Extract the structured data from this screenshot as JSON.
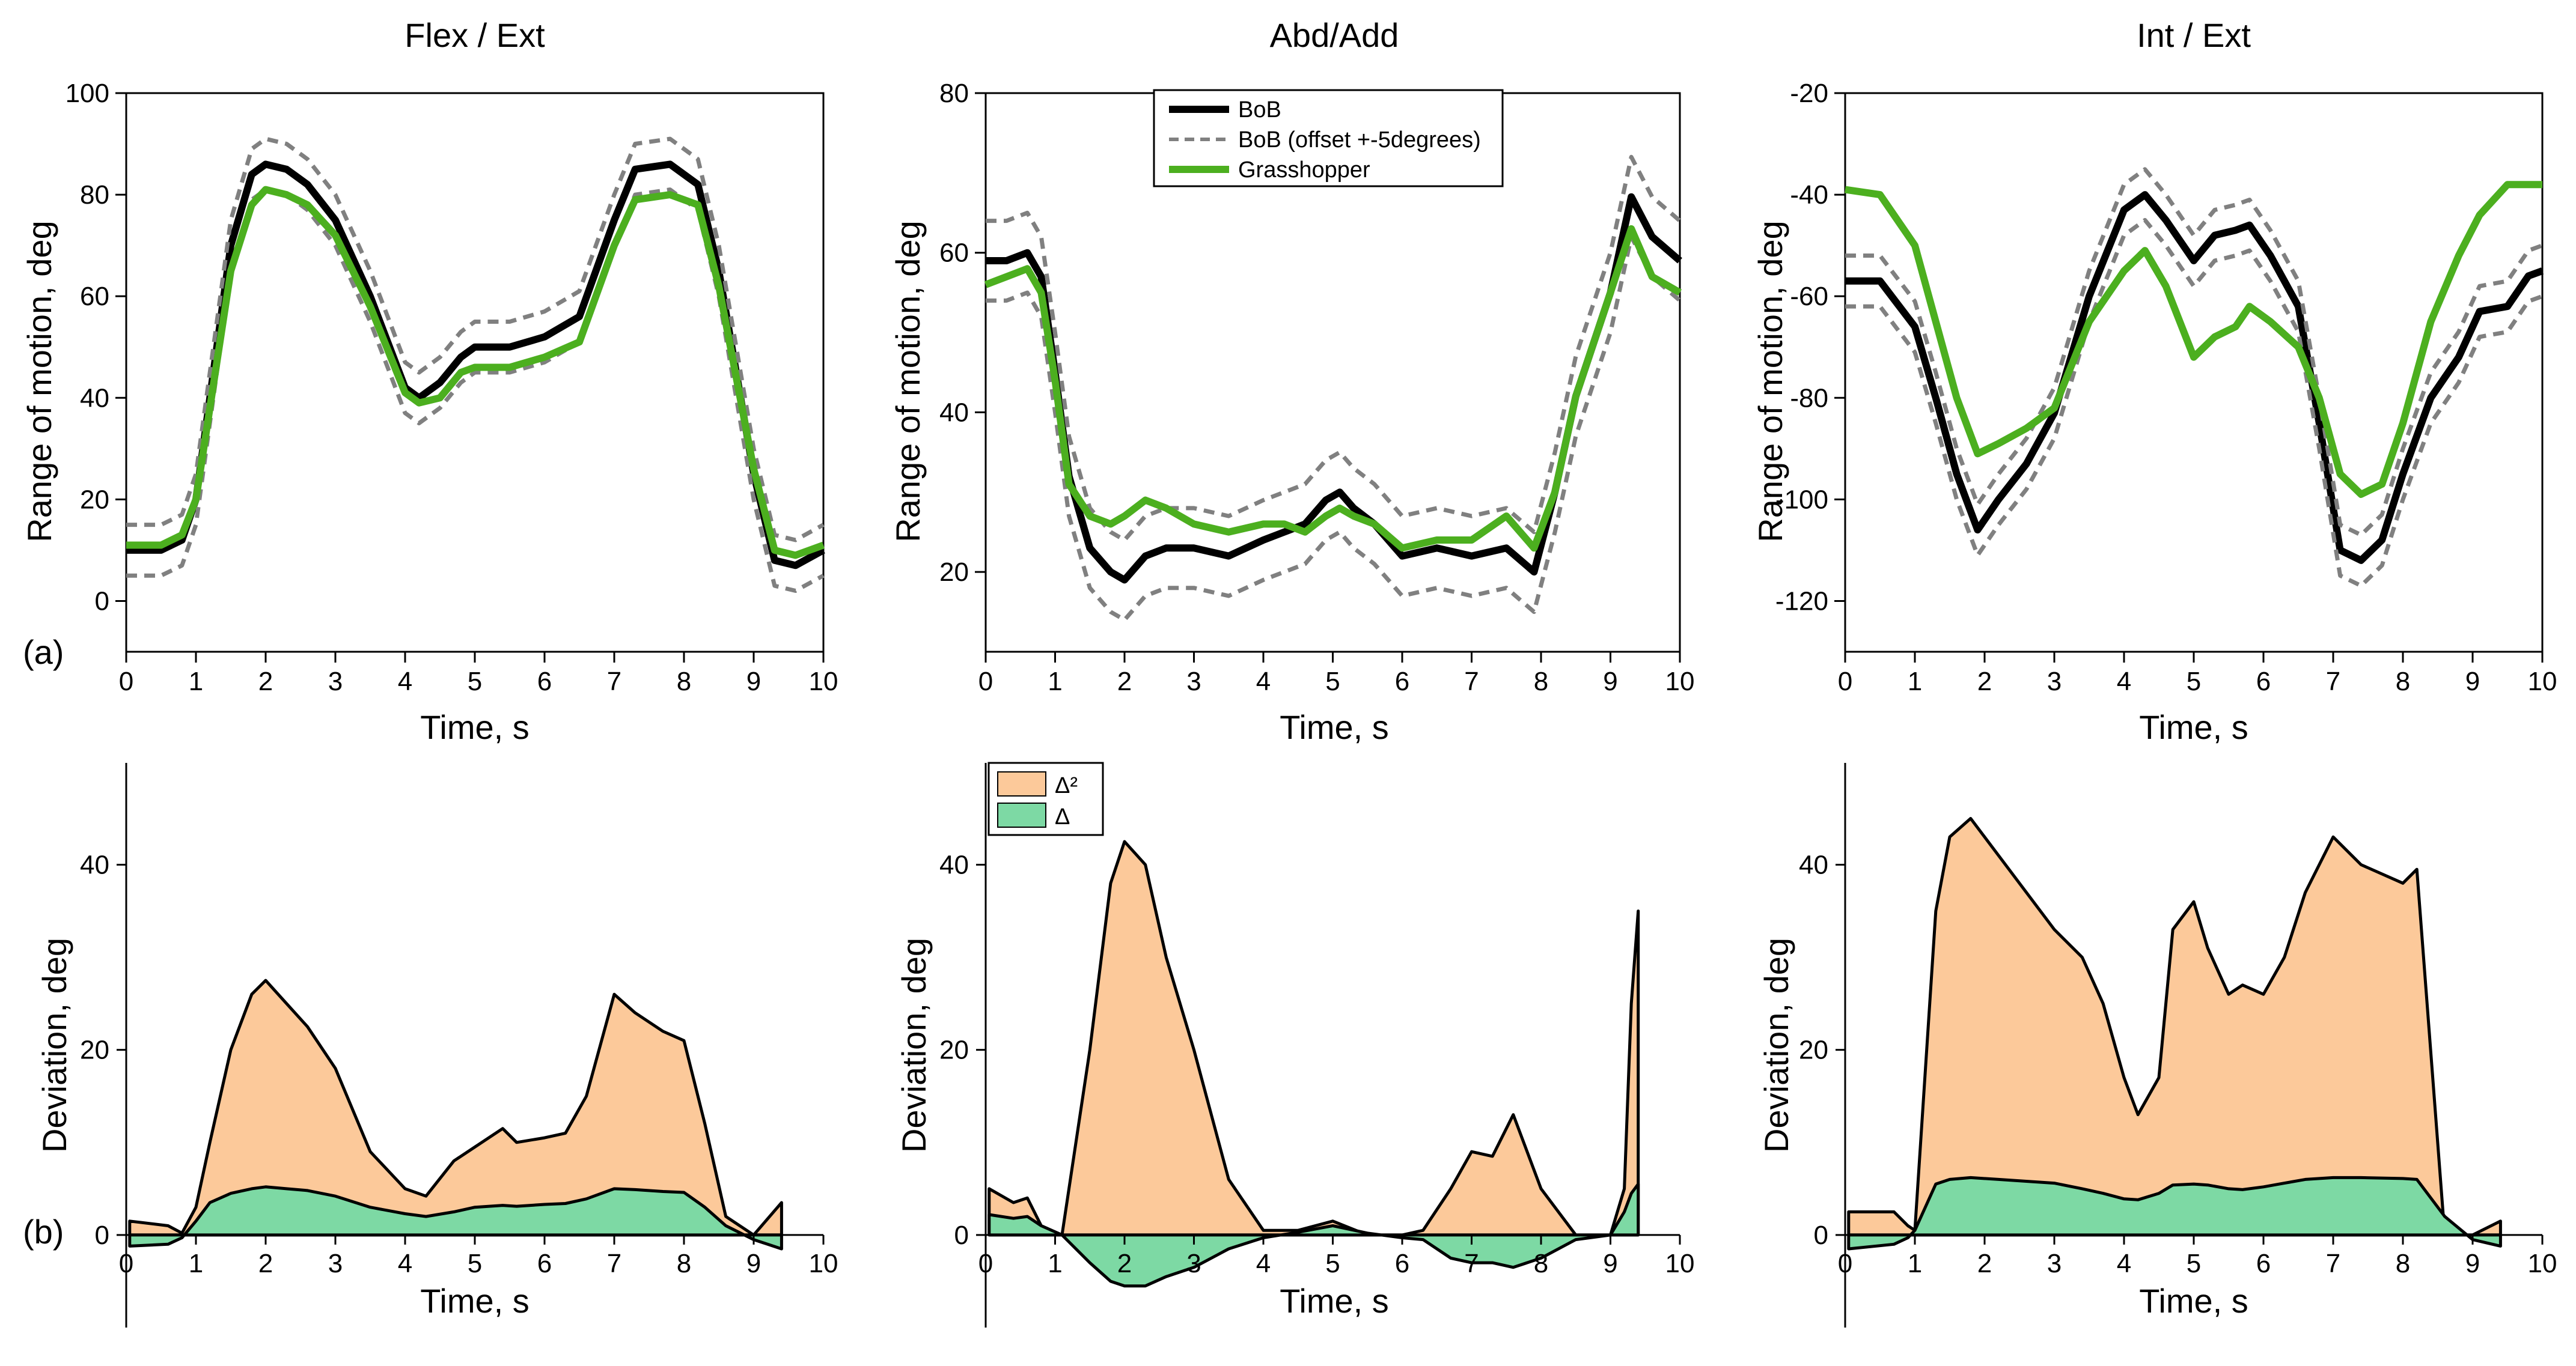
{
  "panel_labels": {
    "top": "(a)",
    "bottom": "(b)"
  },
  "colors": {
    "bob": "#000000",
    "bob_offset": "#808080",
    "grasshopper": "#4caf1f",
    "delta_sq_fill": "#fcc99a",
    "delta_fill": "#7dd9a4"
  },
  "legend_top": [
    "BoB",
    "BoB (offset +-5degrees)",
    "Grasshopper"
  ],
  "legend_bottom": [
    "Δ²",
    "Δ"
  ],
  "chart_data": [
    {
      "type": "line",
      "title": "Flex / Ext",
      "xlabel": "Time, s",
      "ylabel": "Range of motion, deg",
      "xlim": [
        0,
        10
      ],
      "ylim": [
        -10,
        100
      ],
      "xticks": [
        0,
        1,
        2,
        3,
        4,
        5,
        6,
        7,
        8,
        9,
        10
      ],
      "yticks": [
        0,
        20,
        40,
        60,
        80,
        100
      ],
      "x": [
        0,
        0.5,
        0.8,
        1.0,
        1.2,
        1.5,
        1.8,
        2.0,
        2.3,
        2.6,
        3.0,
        3.5,
        4.0,
        4.2,
        4.5,
        4.8,
        5.0,
        5.5,
        6.0,
        6.5,
        7.0,
        7.3,
        7.8,
        8.2,
        8.5,
        9.0,
        9.3,
        9.6,
        10.0
      ],
      "series": [
        {
          "name": "BoB",
          "values": [
            10,
            10,
            12,
            20,
            40,
            70,
            84,
            86,
            85,
            82,
            75,
            60,
            42,
            40,
            43,
            48,
            50,
            50,
            52,
            56,
            75,
            85,
            86,
            82,
            65,
            25,
            8,
            7,
            10
          ]
        },
        {
          "name": "BoB (offset +-5degrees) upper",
          "values": [
            15,
            15,
            17,
            25,
            45,
            75,
            89,
            91,
            90,
            87,
            80,
            65,
            47,
            45,
            48,
            53,
            55,
            55,
            57,
            61,
            80,
            90,
            91,
            87,
            70,
            30,
            13,
            12,
            15
          ]
        },
        {
          "name": "BoB (offset +-5degrees) lower",
          "values": [
            5,
            5,
            7,
            15,
            35,
            65,
            79,
            81,
            80,
            77,
            70,
            55,
            37,
            35,
            38,
            43,
            45,
            45,
            47,
            51,
            70,
            80,
            81,
            77,
            60,
            20,
            3,
            2,
            5
          ]
        },
        {
          "name": "Grasshopper",
          "values": [
            11,
            11,
            13,
            20,
            38,
            65,
            78,
            81,
            80,
            78,
            72,
            58,
            41,
            39,
            40,
            45,
            46,
            46,
            48,
            51,
            70,
            79,
            80,
            78,
            62,
            26,
            10,
            9,
            11
          ]
        }
      ]
    },
    {
      "type": "line",
      "title": "Abd/Add",
      "xlabel": "Time, s",
      "ylabel": "Range of motion, deg",
      "xlim": [
        0,
        10
      ],
      "ylim": [
        10,
        80
      ],
      "xticks": [
        0,
        1,
        2,
        3,
        4,
        5,
        6,
        7,
        8,
        9,
        10
      ],
      "yticks": [
        20,
        40,
        60,
        80
      ],
      "x": [
        0,
        0.3,
        0.6,
        0.8,
        1.0,
        1.2,
        1.5,
        1.8,
        2.0,
        2.3,
        2.6,
        3.0,
        3.5,
        4.0,
        4.3,
        4.6,
        4.9,
        5.1,
        5.3,
        5.6,
        6.0,
        6.5,
        7.0,
        7.5,
        7.9,
        8.2,
        8.5,
        9.0,
        9.3,
        9.6,
        10.0
      ],
      "series": [
        {
          "name": "BoB",
          "values": [
            59,
            59,
            60,
            57,
            45,
            32,
            23,
            20,
            19,
            22,
            23,
            23,
            22,
            24,
            25,
            26,
            29,
            30,
            28,
            26,
            22,
            23,
            22,
            23,
            20,
            30,
            42,
            55,
            67,
            62,
            59
          ]
        },
        {
          "name": "BoB (offset +-5degrees) upper",
          "values": [
            64,
            64,
            65,
            62,
            50,
            37,
            28,
            25,
            24,
            27,
            28,
            28,
            27,
            29,
            30,
            31,
            34,
            35,
            33,
            31,
            27,
            28,
            27,
            28,
            25,
            35,
            47,
            60,
            72,
            67,
            64
          ]
        },
        {
          "name": "BoB (offset +-5degrees) lower",
          "values": [
            54,
            54,
            55,
            52,
            40,
            27,
            18,
            15,
            14,
            17,
            18,
            18,
            17,
            19,
            20,
            21,
            24,
            25,
            23,
            21,
            17,
            18,
            17,
            18,
            15,
            25,
            37,
            50,
            62,
            57,
            54
          ]
        },
        {
          "name": "Grasshopper",
          "values": [
            56,
            57,
            58,
            55,
            44,
            31,
            27,
            26,
            27,
            29,
            28,
            26,
            25,
            26,
            26,
            25,
            27,
            28,
            27,
            26,
            23,
            24,
            24,
            27,
            23,
            30,
            42,
            55,
            63,
            57,
            55
          ]
        }
      ]
    },
    {
      "type": "line",
      "title": "Int / Ext",
      "xlabel": "Time, s",
      "ylabel": "Range of motion, deg",
      "xlim": [
        0,
        10
      ],
      "ylim": [
        -130,
        -20
      ],
      "xticks": [
        0,
        1,
        2,
        3,
        4,
        5,
        6,
        7,
        8,
        9,
        10
      ],
      "yticks": [
        -20,
        -40,
        -60,
        -80,
        -100,
        -120
      ],
      "x": [
        0,
        0.5,
        1.0,
        1.3,
        1.6,
        1.9,
        2.2,
        2.6,
        3.0,
        3.5,
        4.0,
        4.3,
        4.6,
        5.0,
        5.3,
        5.6,
        5.8,
        6.1,
        6.5,
        6.8,
        7.1,
        7.4,
        7.7,
        8.0,
        8.4,
        8.8,
        9.1,
        9.5,
        9.8,
        10.0
      ],
      "series": [
        {
          "name": "BoB",
          "values": [
            -57,
            -57,
            -66,
            -80,
            -95,
            -106,
            -100,
            -93,
            -83,
            -60,
            -43,
            -40,
            -45,
            -53,
            -48,
            -47,
            -46,
            -52,
            -62,
            -85,
            -110,
            -112,
            -108,
            -95,
            -80,
            -72,
            -63,
            -62,
            -56,
            -55
          ]
        },
        {
          "name": "BoB (offset +-5degrees) upper",
          "values": [
            -52,
            -52,
            -61,
            -75,
            -90,
            -101,
            -95,
            -88,
            -78,
            -55,
            -38,
            -35,
            -40,
            -48,
            -43,
            -42,
            -41,
            -47,
            -57,
            -80,
            -105,
            -107,
            -103,
            -90,
            -75,
            -67,
            -58,
            -57,
            -51,
            -50
          ]
        },
        {
          "name": "BoB (offset +-5degrees) lower",
          "values": [
            -62,
            -62,
            -71,
            -85,
            -100,
            -111,
            -105,
            -98,
            -88,
            -65,
            -48,
            -45,
            -50,
            -58,
            -53,
            -52,
            -51,
            -57,
            -67,
            -90,
            -115,
            -117,
            -113,
            -100,
            -85,
            -77,
            -68,
            -67,
            -61,
            -60
          ]
        },
        {
          "name": "Grasshopper",
          "values": [
            -39,
            -40,
            -50,
            -65,
            -80,
            -91,
            -89,
            -86,
            -82,
            -65,
            -55,
            -51,
            -58,
            -72,
            -68,
            -66,
            -62,
            -65,
            -70,
            -80,
            -95,
            -99,
            -97,
            -85,
            -65,
            -52,
            -44,
            -38,
            -38,
            -38
          ]
        }
      ]
    },
    {
      "type": "area",
      "title": "",
      "xlabel": "Time, s",
      "ylabel": "Deviation, deg",
      "xlim": [
        0,
        10
      ],
      "ylim": [
        -10,
        50
      ],
      "xticks": [
        0,
        1,
        2,
        3,
        4,
        5,
        6,
        7,
        8,
        9,
        10
      ],
      "yticks": [
        0,
        20,
        40
      ],
      "x": [
        0.05,
        0.6,
        0.8,
        1.0,
        1.2,
        1.5,
        1.8,
        2.0,
        2.3,
        2.6,
        3.0,
        3.5,
        4.0,
        4.3,
        4.7,
        5.0,
        5.4,
        5.6,
        6.0,
        6.3,
        6.6,
        7.0,
        7.3,
        7.7,
        8.0,
        8.3,
        8.6,
        9.0,
        9.4
      ],
      "series": [
        {
          "name": "Δ²",
          "values": [
            1.5,
            1.0,
            0.2,
            3.0,
            10,
            20,
            26,
            27.5,
            25,
            22.5,
            18,
            9,
            5,
            4.2,
            8,
            9.5,
            11.5,
            10,
            10.5,
            11,
            15,
            26,
            24,
            22,
            21,
            12,
            2,
            0,
            3.5
          ]
        },
        {
          "name": "Δ",
          "values": [
            -1.2,
            -1.0,
            -0.3,
            1.5,
            3.5,
            4.5,
            5.0,
            5.2,
            5.0,
            4.8,
            4.2,
            3.0,
            2.3,
            2.0,
            2.5,
            3.0,
            3.2,
            3.1,
            3.3,
            3.4,
            3.9,
            5.0,
            4.9,
            4.7,
            4.6,
            3.0,
            1.0,
            -0.5,
            -1.5
          ]
        }
      ]
    },
    {
      "type": "area",
      "title": "",
      "xlabel": "Time, s",
      "ylabel": "Deviation, deg",
      "xlim": [
        0,
        10
      ],
      "ylim": [
        -10,
        50
      ],
      "xticks": [
        0,
        1,
        2,
        3,
        4,
        5,
        6,
        7,
        8,
        9,
        10
      ],
      "yticks": [
        0,
        20,
        40
      ],
      "x": [
        0.05,
        0.4,
        0.6,
        0.8,
        1.1,
        1.5,
        1.8,
        2.0,
        2.3,
        2.6,
        3.0,
        3.5,
        4.0,
        4.5,
        5.0,
        5.5,
        6.0,
        6.3,
        6.7,
        7.0,
        7.3,
        7.6,
        8.0,
        8.5,
        9.0,
        9.2,
        9.3,
        9.4
      ],
      "series": [
        {
          "name": "Δ²",
          "values": [
            5,
            3.5,
            4.0,
            1.0,
            0,
            20,
            38,
            42.5,
            40,
            30,
            20,
            6,
            0.5,
            0.5,
            1.5,
            0,
            0,
            0.5,
            5,
            9,
            8.5,
            13,
            5,
            0,
            0,
            5,
            25,
            35
          ]
        },
        {
          "name": "Δ",
          "values": [
            2.2,
            1.8,
            2.0,
            1.0,
            0,
            -3.0,
            -5.0,
            -5.5,
            -5.5,
            -4.5,
            -3.5,
            -1.5,
            -0.3,
            0.3,
            1.0,
            0.2,
            -0.3,
            -0.5,
            -2.5,
            -3.0,
            -3.0,
            -3.5,
            -2.5,
            -0.5,
            0,
            2.5,
            4.5,
            5.5
          ]
        }
      ]
    },
    {
      "type": "area",
      "title": "",
      "xlabel": "Time, s",
      "ylabel": "Deviation, deg",
      "xlim": [
        0,
        10
      ],
      "ylim": [
        -10,
        50
      ],
      "xticks": [
        0,
        1,
        2,
        3,
        4,
        5,
        6,
        7,
        8,
        9,
        10
      ],
      "yticks": [
        0,
        20,
        40
      ],
      "x": [
        0.05,
        0.7,
        0.9,
        1.0,
        1.3,
        1.5,
        1.8,
        2.2,
        2.6,
        3.0,
        3.4,
        3.7,
        4.0,
        4.2,
        4.5,
        4.7,
        5.0,
        5.2,
        5.5,
        5.7,
        6.0,
        6.3,
        6.6,
        7.0,
        7.4,
        8.0,
        8.2,
        8.6,
        9.0,
        9.4
      ],
      "series": [
        {
          "name": "Δ²",
          "values": [
            2.5,
            2.5,
            1.0,
            0.5,
            35,
            43,
            45,
            41,
            37,
            33,
            30,
            25,
            17,
            13,
            17,
            33,
            36,
            31,
            26,
            27,
            26,
            30,
            37,
            43,
            40,
            38,
            39.5,
            0,
            0,
            1.5
          ]
        },
        {
          "name": "Δ",
          "values": [
            -1.5,
            -1.0,
            -0.3,
            0.5,
            5.5,
            6.0,
            6.2,
            6.0,
            5.8,
            5.6,
            5.0,
            4.5,
            3.9,
            3.8,
            4.5,
            5.4,
            5.5,
            5.4,
            5.0,
            4.9,
            5.2,
            5.6,
            6.0,
            6.2,
            6.2,
            6.1,
            6.0,
            2.0,
            -0.5,
            -1.2
          ]
        }
      ]
    }
  ]
}
